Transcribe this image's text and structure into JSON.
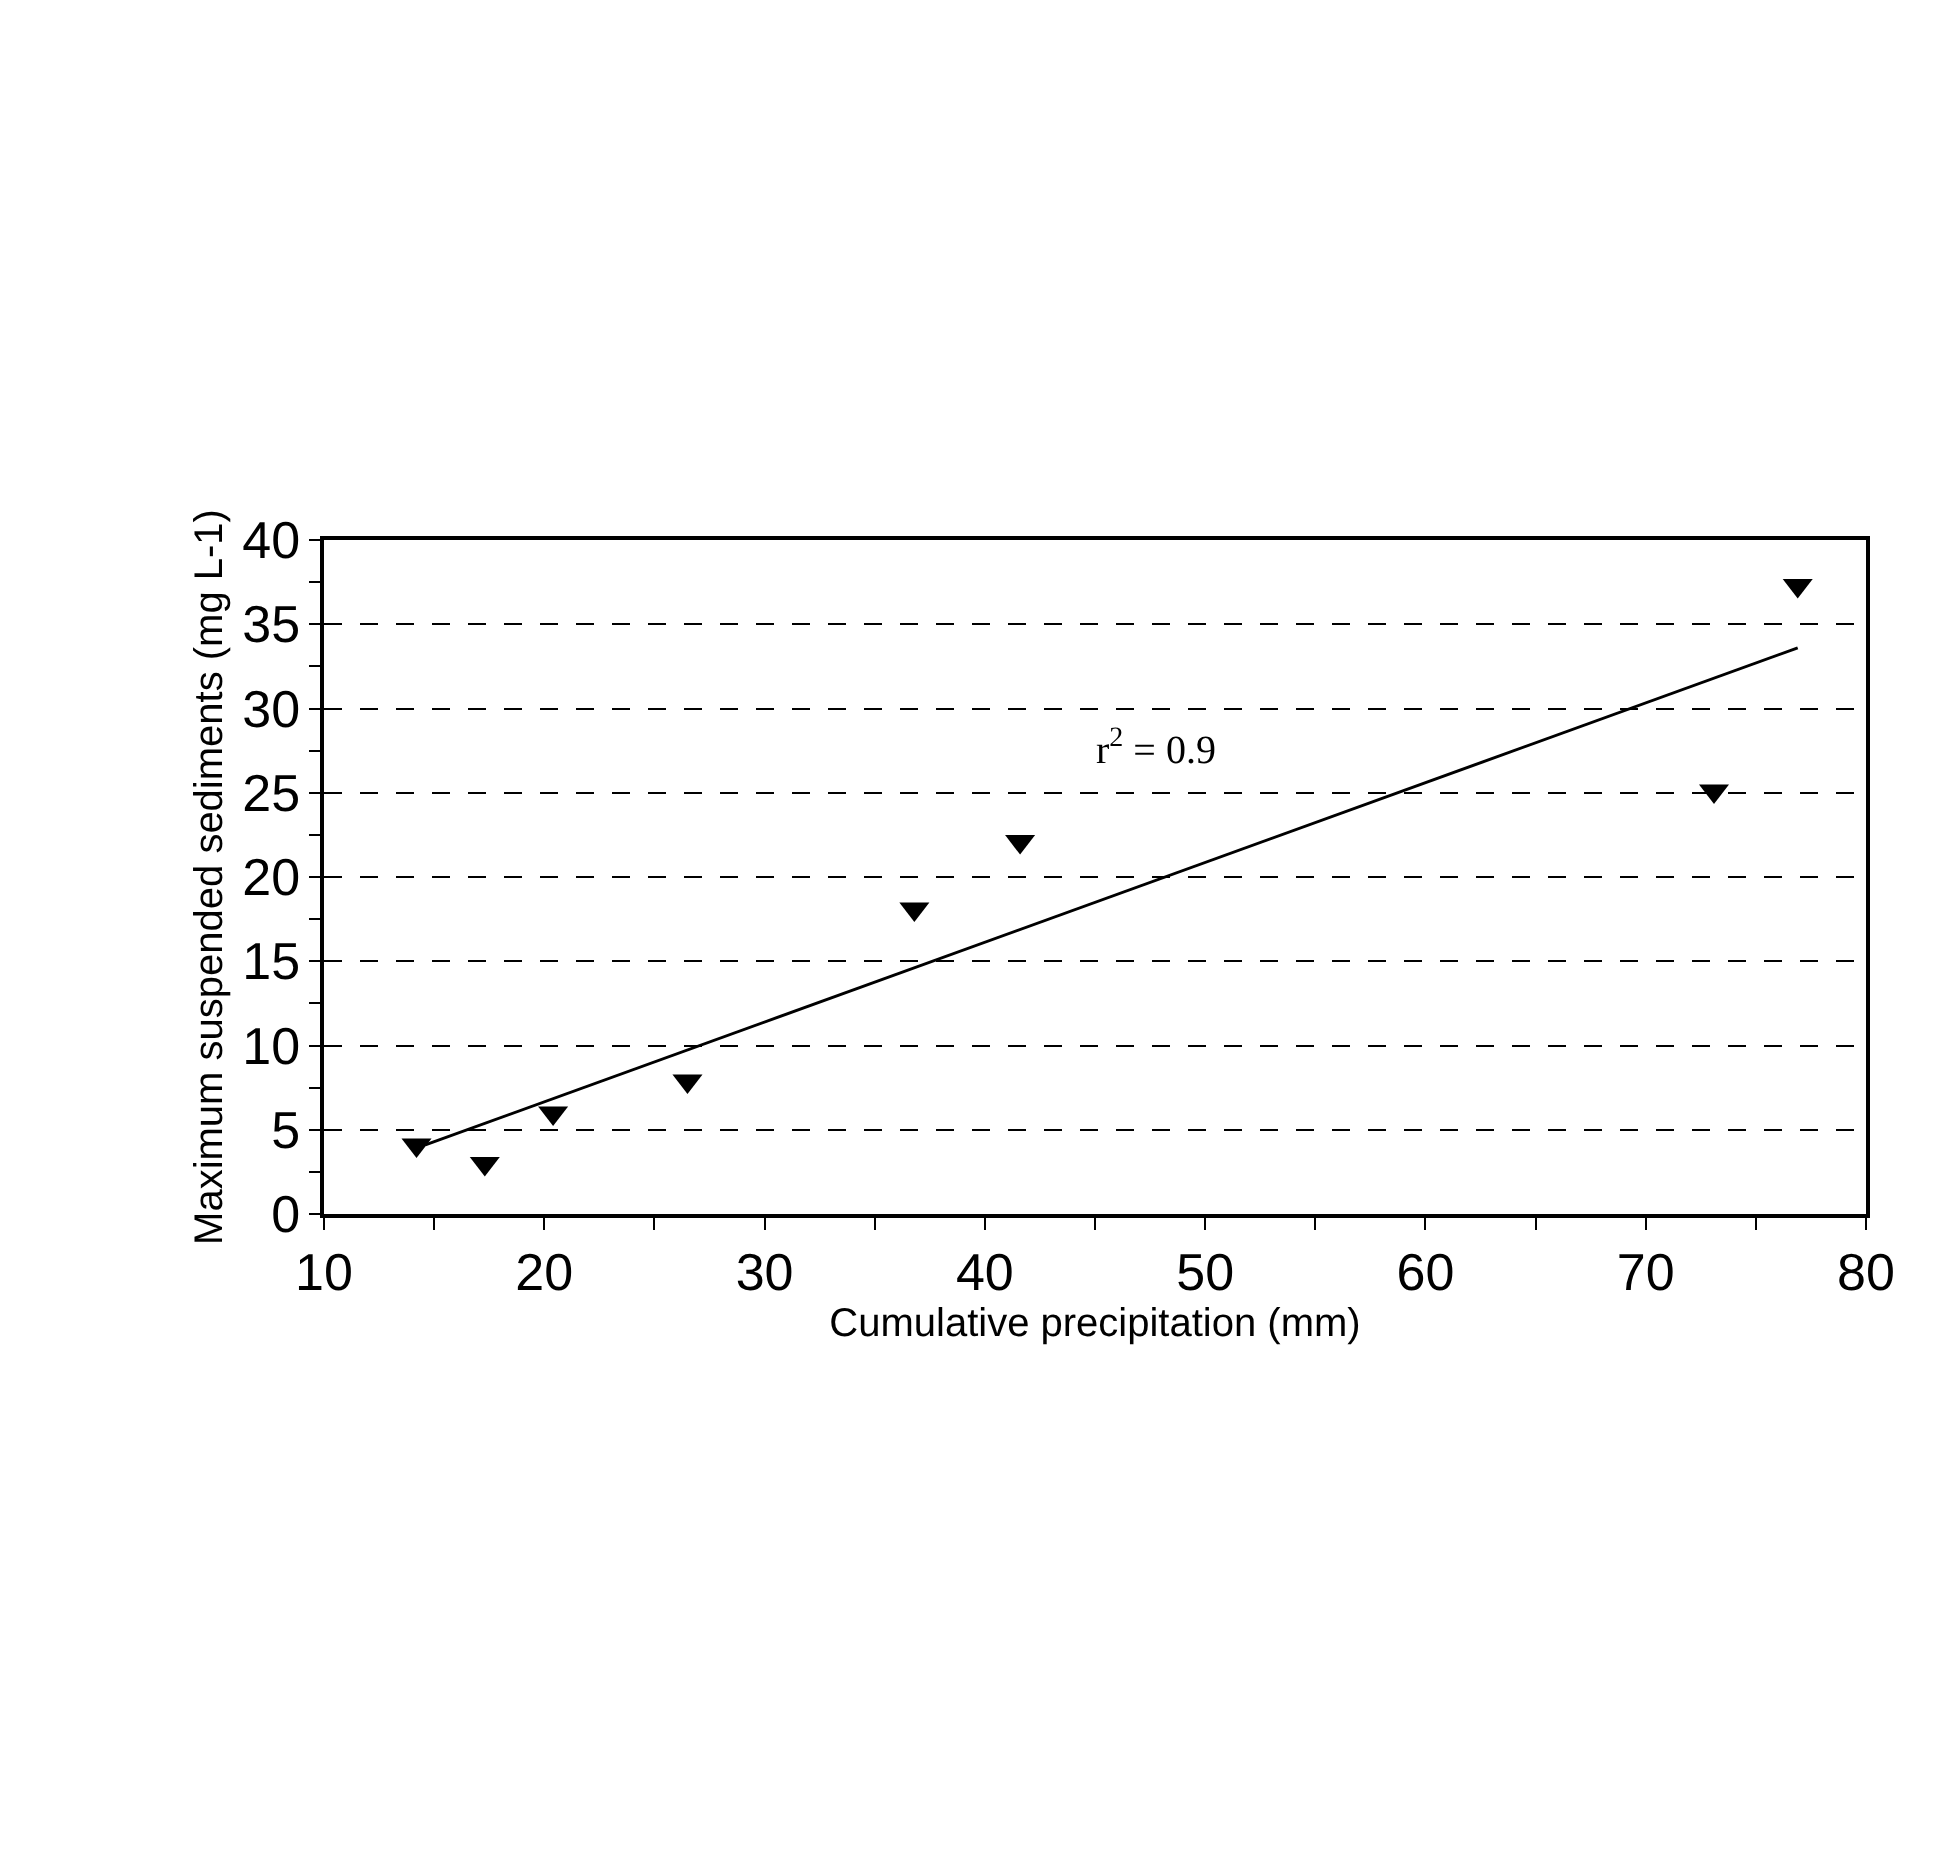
{
  "chart_data": {
    "type": "scatter",
    "xlabel": "Cumulative precipitation (mm)",
    "ylabel": "Maximum suspended sediments (mg L-1)",
    "xlim": [
      10,
      80
    ],
    "xticks": [
      10,
      20,
      30,
      40,
      50,
      60,
      70,
      80
    ],
    "ylim": [
      0,
      40
    ],
    "yticks": [
      0,
      5,
      10,
      15,
      20,
      25,
      30,
      35,
      40
    ],
    "grid": "y",
    "series": [
      {
        "color": "#000000",
        "marker": "triangle",
        "x": [
          14.2,
          17.3,
          20.4,
          26.5,
          36.8,
          41.6,
          73.1,
          76.9
        ],
        "values": [
          4.1,
          3.0,
          6.0,
          7.9,
          18.1,
          22.1,
          25.1,
          37.3
        ]
      },
      {
        "type": "line",
        "color": "#000000",
        "x": [
          14.6,
          76.9
        ],
        "values": [
          4.1,
          33.6
        ]
      }
    ],
    "annotations": [
      "r$^{2}$ = 0.9"
    ]
  }
}
